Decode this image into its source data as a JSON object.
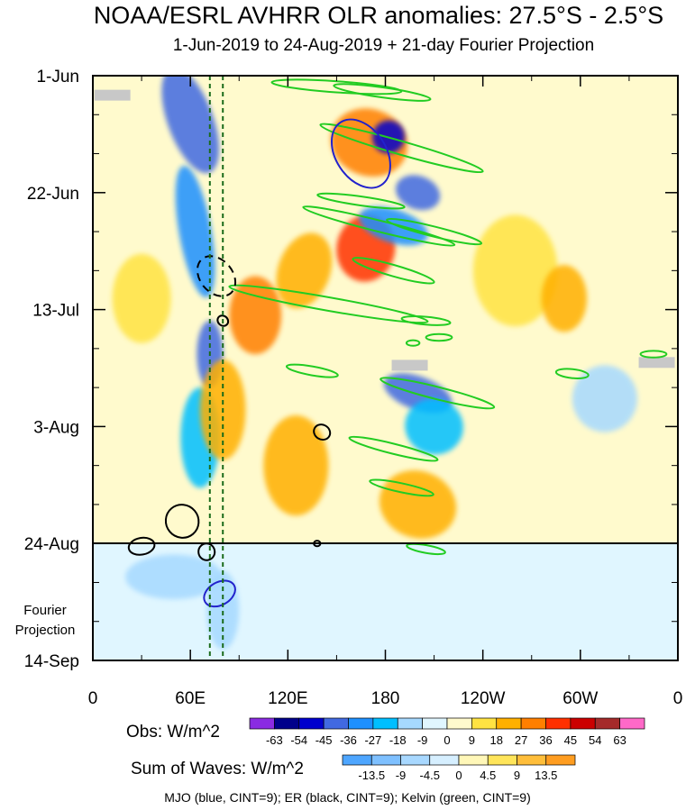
{
  "title": "NOAA/ESRL AVHRR OLR anomalies: 27.5°S - 2.5°S",
  "subtitle": "1-Jun-2019 to 24-Aug-2019 + 21-day Fourier Projection",
  "fourier_label": [
    "Fourier",
    "Projection"
  ],
  "obs_legend": {
    "title": "Obs: W/m^2",
    "labels": [
      "-63",
      "-54",
      "-45",
      "-36",
      "-27",
      "-18",
      "-9",
      "0",
      "9",
      "18",
      "27",
      "36",
      "45",
      "54",
      "63"
    ],
    "colors": [
      "#8a2be2",
      "#00008b",
      "#0000cd",
      "#4169e1",
      "#1e90ff",
      "#00bfff",
      "#a6d9ff",
      "#e0f6ff",
      "#fffacd",
      "#ffe342",
      "#ffb000",
      "#ff7f00",
      "#ff3000",
      "#cc0000",
      "#a52a2a",
      "#ff69c8"
    ]
  },
  "wave_legend": {
    "title": "Sum of Waves: W/m^2",
    "labels": [
      "-13.5",
      "-9",
      "-4.5",
      "0",
      "4.5",
      "9",
      "13.5"
    ],
    "colors": [
      "#4ea6ff",
      "#7ec0ff",
      "#a8d8ff",
      "#d6efff",
      "#fff7b8",
      "#ffe55a",
      "#ffbe3a",
      "#ff9d20"
    ]
  },
  "caption": "MJO (blue, CINT=9); ER (black, CINT=9); Kelvin (green, CINT=9)",
  "chart_data": {
    "type": "heatmap",
    "xlabel": "",
    "ylabel": "",
    "x_ticks": [
      {
        "lon": 0,
        "label": "0"
      },
      {
        "lon": 60,
        "label": "60E"
      },
      {
        "lon": 120,
        "label": "120E"
      },
      {
        "lon": 180,
        "label": "180"
      },
      {
        "lon": 240,
        "label": "120W"
      },
      {
        "lon": 300,
        "label": "60W"
      },
      {
        "lon": 360,
        "label": "0"
      }
    ],
    "xlim": [
      0,
      360
    ],
    "y_ticks": [
      {
        "day": 0,
        "label": "1-Jun"
      },
      {
        "day": 21,
        "label": "22-Jun"
      },
      {
        "day": 42,
        "label": "13-Jul"
      },
      {
        "day": 63,
        "label": "3-Aug"
      },
      {
        "day": 84,
        "label": "24-Aug"
      },
      {
        "day": 105,
        "label": "14-Sep"
      }
    ],
    "ylim": [
      0,
      105
    ],
    "observation_end_day": 84,
    "reference_lines_lon": [
      72,
      80
    ],
    "colorbar_obs": [
      -63,
      -54,
      -45,
      -36,
      -27,
      -18,
      -9,
      0,
      9,
      18,
      27,
      36,
      45,
      54,
      63
    ],
    "colorbar_waves": [
      -13.5,
      -9,
      -4.5,
      0,
      4.5,
      9,
      13.5
    ],
    "blobs": [
      {
        "lon": 60,
        "day": 8,
        "rx": 14,
        "ry": 10,
        "rot": -20,
        "value": -40
      },
      {
        "lon": 63,
        "day": 28,
        "rx": 10,
        "ry": 12,
        "rot": -10,
        "value": -30
      },
      {
        "lon": 72,
        "day": 50,
        "rx": 8,
        "ry": 6,
        "rot": 0,
        "value": -45
      },
      {
        "lon": 66,
        "day": 65,
        "rx": 12,
        "ry": 9,
        "rot": 0,
        "value": -20
      },
      {
        "lon": 170,
        "day": 12,
        "rx": 24,
        "ry": 6,
        "rot": 20,
        "value": 32
      },
      {
        "lon": 182,
        "day": 11,
        "rx": 10,
        "ry": 3,
        "rot": 20,
        "value": -50
      },
      {
        "lon": 200,
        "day": 21,
        "rx": 14,
        "ry": 3,
        "rot": 20,
        "value": -45
      },
      {
        "lon": 168,
        "day": 31,
        "rx": 18,
        "ry": 6,
        "rot": 10,
        "value": 36
      },
      {
        "lon": 185,
        "day": 27,
        "rx": 22,
        "ry": 3,
        "rot": 18,
        "value": -30
      },
      {
        "lon": 100,
        "day": 43,
        "rx": 16,
        "ry": 7,
        "rot": 0,
        "value": 27
      },
      {
        "lon": 200,
        "day": 57,
        "rx": 22,
        "ry": 3,
        "rot": 20,
        "value": -40
      },
      {
        "lon": 80,
        "day": 60,
        "rx": 14,
        "ry": 9,
        "rot": 0,
        "value": 18
      },
      {
        "lon": 125,
        "day": 70,
        "rx": 20,
        "ry": 9,
        "rot": 0,
        "value": 18
      },
      {
        "lon": 260,
        "day": 35,
        "rx": 26,
        "ry": 10,
        "rot": 0,
        "value": 12
      },
      {
        "lon": 130,
        "day": 35,
        "rx": 16,
        "ry": 7,
        "rot": 20,
        "value": 18
      },
      {
        "lon": 200,
        "day": 77,
        "rx": 24,
        "ry": 6,
        "rot": 20,
        "value": 20
      },
      {
        "lon": 210,
        "day": 63,
        "rx": 18,
        "ry": 5,
        "rot": 20,
        "value": -25
      },
      {
        "lon": 315,
        "day": 58,
        "rx": 20,
        "ry": 6,
        "rot": 0,
        "value": -10
      },
      {
        "lon": 290,
        "day": 40,
        "rx": 14,
        "ry": 6,
        "rot": 0,
        "value": 18
      },
      {
        "lon": 30,
        "day": 40,
        "rx": 18,
        "ry": 8,
        "rot": 0,
        "value": 10
      },
      {
        "lon": 50,
        "day": 90,
        "rx": 30,
        "ry": 4,
        "rot": 0,
        "value": -12
      },
      {
        "lon": 80,
        "day": 96,
        "rx": 10,
        "ry": 7,
        "rot": 0,
        "value": -15
      }
    ],
    "mjo_contours": [
      {
        "lon": 165,
        "day": 14,
        "rx": 23,
        "ry": 4.5,
        "rot": 57,
        "dashed": false
      },
      {
        "lon": 78,
        "day": 93,
        "rx": 7,
        "ry": 3,
        "rot": 60,
        "dashed": false
      }
    ],
    "er_contours": [
      {
        "lon": 76,
        "day": 36,
        "rx": 10,
        "ry": 4,
        "rot": -40,
        "dashed": true
      },
      {
        "lon": 80,
        "day": 44,
        "rx": 3,
        "ry": 1,
        "rot": -50,
        "dashed": false
      },
      {
        "lon": 141,
        "day": 64,
        "rx": 4.5,
        "ry": 1.5,
        "rot": -60,
        "dashed": false
      },
      {
        "lon": 55,
        "day": 80,
        "rx": 10,
        "ry": 3,
        "rot": -40,
        "dashed": false
      },
      {
        "lon": 30,
        "day": 84.5,
        "rx": 8,
        "ry": 1.5,
        "rot": -10,
        "dashed": false
      },
      {
        "lon": 70,
        "day": 85.5,
        "rx": 5,
        "ry": 1.5,
        "rot": -10,
        "dashed": false
      },
      {
        "lon": 138,
        "day": 84,
        "rx": 2,
        "ry": 0.5,
        "rot": 0,
        "dashed": false
      }
    ],
    "kelvin_contours": [
      {
        "lon": 150,
        "day": 2,
        "rx": 40,
        "ry": 1,
        "rot": 4,
        "dashed": false
      },
      {
        "lon": 178,
        "day": 3,
        "rx": 30,
        "ry": 0.9,
        "rot": 8,
        "dashed": false
      },
      {
        "lon": 190,
        "day": 13,
        "rx": 52,
        "ry": 1.2,
        "rot": 16,
        "dashed": false
      },
      {
        "lon": 165,
        "day": 22.5,
        "rx": 27,
        "ry": 0.8,
        "rot": 8,
        "dashed": false
      },
      {
        "lon": 176,
        "day": 27,
        "rx": 48,
        "ry": 1,
        "rot": 14,
        "dashed": false
      },
      {
        "lon": 210,
        "day": 28,
        "rx": 30,
        "ry": 0.9,
        "rot": 14,
        "dashed": false
      },
      {
        "lon": 185,
        "day": 35,
        "rx": 26,
        "ry": 1,
        "rot": 16,
        "dashed": false
      },
      {
        "lon": 145,
        "day": 41,
        "rx": 62,
        "ry": 1.2,
        "rot": 10,
        "dashed": false
      },
      {
        "lon": 205,
        "day": 44,
        "rx": 15,
        "ry": 0.7,
        "rot": 5,
        "dashed": false
      },
      {
        "lon": 213,
        "day": 47,
        "rx": 8,
        "ry": 0.6,
        "rot": 0,
        "dashed": false
      },
      {
        "lon": 197,
        "day": 48,
        "rx": 4,
        "ry": 0.5,
        "rot": 0,
        "dashed": false
      },
      {
        "lon": 345,
        "day": 50,
        "rx": 8,
        "ry": 0.6,
        "rot": 0,
        "dashed": false
      },
      {
        "lon": 135,
        "day": 53,
        "rx": 16,
        "ry": 0.8,
        "rot": 10,
        "dashed": false
      },
      {
        "lon": 212,
        "day": 57,
        "rx": 36,
        "ry": 1.1,
        "rot": 14,
        "dashed": false
      },
      {
        "lon": 295,
        "day": 53.5,
        "rx": 10,
        "ry": 0.8,
        "rot": 6,
        "dashed": false
      },
      {
        "lon": 185,
        "day": 67,
        "rx": 28,
        "ry": 0.9,
        "rot": 14,
        "dashed": false
      },
      {
        "lon": 190,
        "day": 74,
        "rx": 20,
        "ry": 0.8,
        "rot": 12,
        "dashed": false
      },
      {
        "lon": 205,
        "day": 85,
        "rx": 12,
        "ry": 0.7,
        "rot": 10,
        "dashed": false
      }
    ],
    "missing_data": [
      {
        "lon": 12,
        "day": 3.5
      },
      {
        "lon": 195,
        "day": 52
      },
      {
        "lon": 347,
        "day": 51.5
      }
    ]
  }
}
